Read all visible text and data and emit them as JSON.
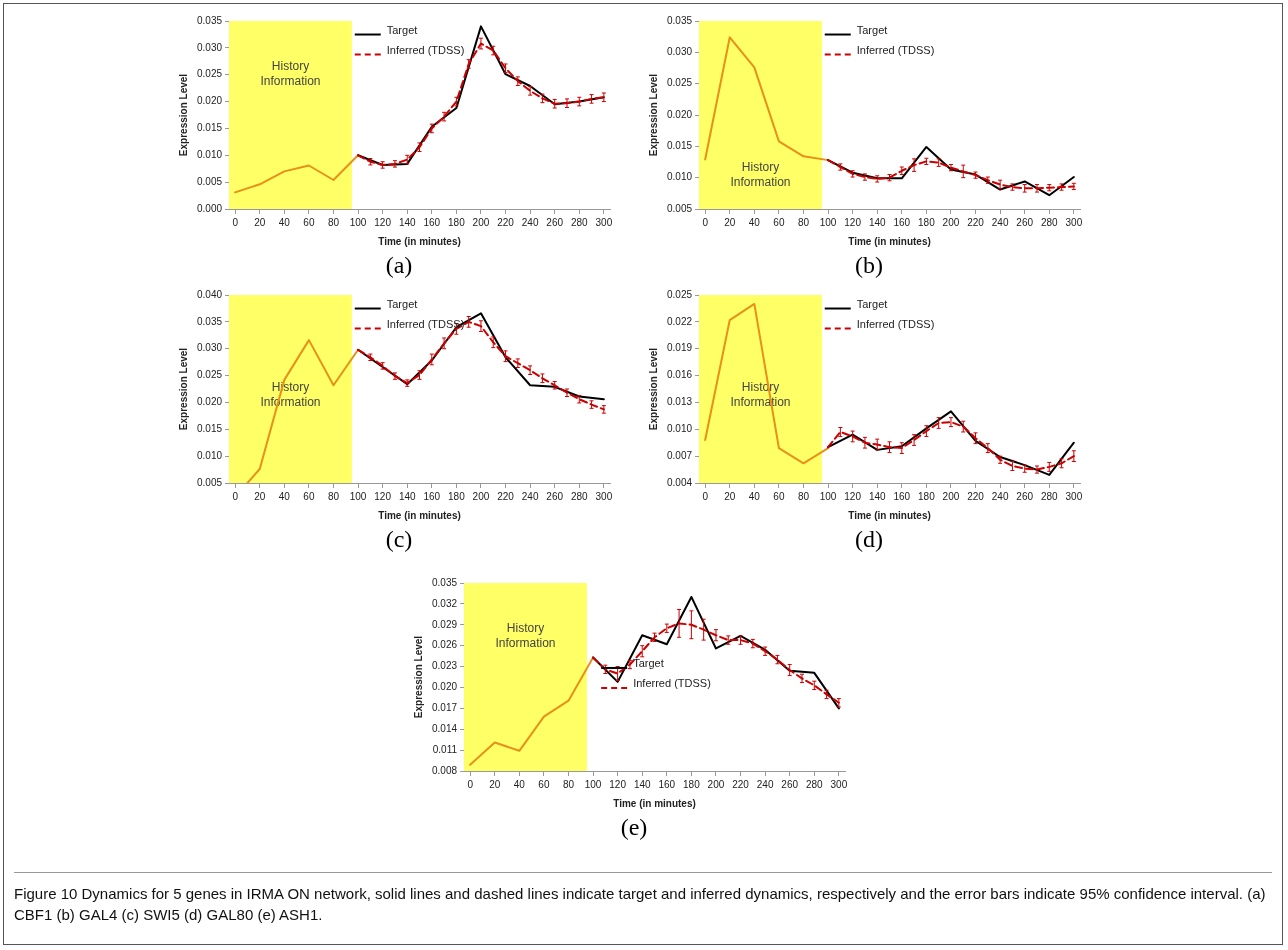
{
  "chart_data": [
    {
      "type": "line",
      "xlabel": "Time (in minutes)",
      "ylabel": "Expression Level",
      "annotations": [
        "(a)"
      ],
      "legend": "top",
      "grid": false,
      "xlim": [
        -5,
        305
      ],
      "xticks": [
        0,
        20,
        40,
        60,
        80,
        100,
        120,
        140,
        160,
        180,
        200,
        220,
        240,
        260,
        280,
        300
      ],
      "ylim": [
        0,
        0.035
      ],
      "yticks": [
        {
          "value": 0,
          "label": "0.000"
        },
        0.005,
        {
          "value": 0.01,
          "label": "0.010"
        },
        0.015,
        {
          "value": 0.02,
          "label": "0.020"
        },
        0.025,
        {
          "value": 0.03,
          "label": "0.030"
        },
        0.035
      ],
      "bands": [
        {
          "axis": "x",
          "from": -5,
          "to": 95,
          "label": "History Information",
          "color": "#ffff66"
        }
      ],
      "series": [
        {
          "color": "#e8901a",
          "x": [
            0,
            20,
            40,
            60,
            80,
            100
          ],
          "values": [
            0.0031,
            0.0046,
            0.007,
            0.0081,
            0.0054,
            0.01
          ]
        },
        {
          "name": "Target",
          "color": "#000000",
          "x": [
            100,
            120,
            140,
            160,
            180,
            200,
            220,
            240,
            260,
            280,
            300
          ],
          "values": [
            0.01,
            0.0082,
            0.0084,
            0.0153,
            0.0188,
            0.034,
            0.0251,
            0.0229,
            0.0195,
            0.02,
            0.0208
          ]
        },
        {
          "name": "Inferred (TDSS)",
          "color": "#cc0000",
          "line_style": "dashed",
          "x": [
            100,
            110,
            120,
            130,
            140,
            150,
            160,
            170,
            180,
            190,
            200,
            210,
            220,
            230,
            240,
            250,
            260,
            270,
            280,
            290,
            300
          ],
          "values": [
            0.01,
            0.0088,
            0.0082,
            0.0084,
            0.0092,
            0.0115,
            0.015,
            0.0172,
            0.02,
            0.027,
            0.0308,
            0.0295,
            0.0262,
            0.0238,
            0.022,
            0.0206,
            0.0196,
            0.0197,
            0.02,
            0.0205,
            0.0208
          ],
          "errors": [
            null,
            0.0006,
            0.0006,
            0.0006,
            0.0008,
            0.0008,
            0.0008,
            0.0008,
            0.0008,
            0.0008,
            0.001,
            0.0008,
            0.0008,
            0.0008,
            0.0008,
            0.0008,
            0.0008,
            0.0008,
            0.0008,
            0.0008,
            0.0008
          ]
        }
      ]
    },
    {
      "type": "line",
      "xlabel": "Time (in minutes)",
      "ylabel": "Expression Level",
      "annotations": [
        "(b)"
      ],
      "legend": "top",
      "grid": false,
      "xlim": [
        -5,
        305
      ],
      "xticks": [
        0,
        20,
        40,
        60,
        80,
        100,
        120,
        140,
        160,
        180,
        200,
        220,
        240,
        260,
        280,
        300
      ],
      "ylim": [
        0.005,
        0.035
      ],
      "yticks": [
        0.005,
        {
          "value": 0.01,
          "label": "0.010"
        },
        0.015,
        {
          "value": 0.02,
          "label": "0.020"
        },
        0.025,
        {
          "value": 0.03,
          "label": "0.030"
        },
        0.035
      ],
      "bands": [
        {
          "axis": "x",
          "from": -5,
          "to": 95,
          "label": "History Information",
          "color": "#ffff66"
        }
      ],
      "series": [
        {
          "color": "#e8901a",
          "x": [
            0,
            20,
            40,
            60,
            80,
            100
          ],
          "values": [
            0.0129,
            0.0324,
            0.0276,
            0.0158,
            0.0134,
            0.0128
          ]
        },
        {
          "name": "Target",
          "color": "#000000",
          "x": [
            100,
            120,
            140,
            160,
            180,
            200,
            220,
            240,
            260,
            280,
            300
          ],
          "values": [
            0.0128,
            0.0108,
            0.0099,
            0.0099,
            0.0149,
            0.0113,
            0.0105,
            0.0081,
            0.0094,
            0.0072,
            0.0101
          ]
        },
        {
          "name": "Inferred (TDSS)",
          "color": "#cc0000",
          "line_style": "dashed",
          "x": [
            100,
            110,
            120,
            130,
            140,
            150,
            160,
            170,
            180,
            190,
            200,
            210,
            220,
            230,
            240,
            250,
            260,
            270,
            280,
            290,
            300
          ],
          "values": [
            0.0128,
            0.0117,
            0.0106,
            0.0101,
            0.0098,
            0.01,
            0.0111,
            0.012,
            0.0126,
            0.0124,
            0.0116,
            0.011,
            0.0104,
            0.0096,
            0.0089,
            0.0085,
            0.0083,
            0.0083,
            0.0084,
            0.0085,
            0.0086
          ],
          "errors": [
            null,
            0.0005,
            0.0005,
            0.0005,
            0.0005,
            0.0005,
            0.0006,
            0.001,
            0.0005,
            0.0006,
            0.0005,
            0.001,
            0.0005,
            0.0005,
            0.0007,
            0.0005,
            0.0006,
            0.0006,
            0.0005,
            0.0005,
            0.0005
          ]
        }
      ]
    },
    {
      "type": "line",
      "xlabel": "Time (in minutes)",
      "ylabel": "Expression Level",
      "annotations": [
        "(c)"
      ],
      "legend": "top",
      "grid": false,
      "xlim": [
        -5,
        305
      ],
      "xticks": [
        0,
        20,
        40,
        60,
        80,
        100,
        120,
        140,
        160,
        180,
        200,
        220,
        240,
        260,
        280,
        300
      ],
      "ylim": [
        0.005,
        0.04
      ],
      "yticks": [
        0.005,
        {
          "value": 0.01,
          "label": "0.010"
        },
        0.015,
        {
          "value": 0.02,
          "label": "0.020"
        },
        0.025,
        {
          "value": 0.03,
          "label": "0.030"
        },
        0.035,
        {
          "value": 0.04,
          "label": "0.040"
        }
      ],
      "bands": [
        {
          "axis": "x",
          "from": -5,
          "to": 95,
          "label": "History Information",
          "color": "#ffff66"
        }
      ],
      "series": [
        {
          "color": "#e8901a",
          "x": [
            10,
            20,
            40,
            60,
            80,
            100
          ],
          "values": [
            0.005,
            0.0076,
            0.0242,
            0.0316,
            0.0232,
            0.0298
          ]
        },
        {
          "name": "Target",
          "color": "#000000",
          "x": [
            100,
            120,
            140,
            160,
            180,
            200,
            220,
            240,
            260,
            280,
            300
          ],
          "values": [
            0.0298,
            0.0266,
            0.0234,
            0.0278,
            0.034,
            0.0366,
            0.0284,
            0.0232,
            0.0229,
            0.0211,
            0.0206
          ]
        },
        {
          "name": "Inferred (TDSS)",
          "color": "#cc0000",
          "line_style": "dashed",
          "x": [
            100,
            110,
            120,
            130,
            140,
            150,
            160,
            170,
            180,
            190,
            200,
            210,
            220,
            230,
            240,
            250,
            260,
            270,
            280,
            290,
            300
          ],
          "values": [
            0.0298,
            0.0284,
            0.0268,
            0.0249,
            0.0236,
            0.0251,
            0.028,
            0.031,
            0.0337,
            0.035,
            0.0342,
            0.0312,
            0.0286,
            0.0273,
            0.026,
            0.0245,
            0.0232,
            0.0218,
            0.0206,
            0.0196,
            0.0187
          ],
          "errors": [
            null,
            0.0006,
            0.0006,
            0.0006,
            0.0006,
            0.0008,
            0.001,
            0.001,
            0.001,
            0.001,
            0.001,
            0.001,
            0.001,
            0.0008,
            0.0008,
            0.0008,
            0.0007,
            0.0007,
            0.0007,
            0.0007,
            0.0007
          ]
        }
      ]
    },
    {
      "type": "line",
      "xlabel": "Time (in minutes)",
      "ylabel": "Expression Level",
      "annotations": [
        "(d)"
      ],
      "legend": "top",
      "grid": false,
      "xlim": [
        -5,
        305
      ],
      "xticks": [
        0,
        20,
        40,
        60,
        80,
        100,
        120,
        140,
        160,
        180,
        200,
        220,
        240,
        260,
        280,
        300
      ],
      "ylim": [
        0.004,
        0.025
      ],
      "yticks": [
        0.004,
        0.007,
        {
          "value": 0.01,
          "label": "0.010"
        },
        0.013,
        0.016,
        0.019,
        0.022,
        0.025
      ],
      "bands": [
        {
          "axis": "x",
          "from": -5,
          "to": 95,
          "label": "History Information",
          "color": "#ffff66"
        }
      ],
      "series": [
        {
          "color": "#e8901a",
          "x": [
            0,
            20,
            40,
            60,
            80,
            100
          ],
          "values": [
            0.0088,
            0.0222,
            0.024,
            0.0079,
            0.0062,
            0.0079
          ]
        },
        {
          "name": "Target",
          "color": "#000000",
          "x": [
            100,
            120,
            140,
            160,
            180,
            200,
            220,
            240,
            260,
            280,
            300
          ],
          "values": [
            0.008,
            0.0094,
            0.0077,
            0.0081,
            0.0101,
            0.012,
            0.0087,
            0.0069,
            0.006,
            0.0049,
            0.0085
          ]
        },
        {
          "name": "Inferred (TDSS)",
          "color": "#cc0000",
          "line_style": "dashed",
          "x": [
            100,
            110,
            120,
            130,
            140,
            150,
            160,
            170,
            180,
            190,
            200,
            210,
            220,
            230,
            240,
            250,
            260,
            270,
            280,
            290,
            300
          ],
          "values": [
            0.008,
            0.0097,
            0.0092,
            0.0085,
            0.0083,
            0.008,
            0.0079,
            0.0088,
            0.0098,
            0.0107,
            0.0108,
            0.0103,
            0.009,
            0.0079,
            0.0066,
            0.0059,
            0.0056,
            0.0055,
            0.0058,
            0.0062,
            0.007
          ],
          "errors": [
            null,
            0.0005,
            0.0006,
            0.0006,
            0.0006,
            0.0006,
            0.0006,
            0.0006,
            0.0006,
            0.0006,
            0.0005,
            0.0006,
            0.0006,
            0.0005,
            0.0004,
            0.0005,
            0.0004,
            0.0004,
            0.0005,
            0.0005,
            0.0006
          ]
        }
      ]
    },
    {
      "type": "line",
      "xlabel": "Time (in minutes)",
      "ylabel": "Expression Level",
      "annotations": [
        "(e)",
        "Figure 10 Dynamics for 5 genes in IRMA ON network, solid lines and dashed lines indicate target and inferred dynamics, respectively and the error bars indicate 95% confidence interval. (a) CBF1 (b) GAL4 (c) SWI5 (d) GAL80 (e) ASH1."
      ],
      "legend": "center",
      "grid": false,
      "xlim": [
        -5,
        305
      ],
      "xticks": [
        0,
        20,
        40,
        60,
        80,
        100,
        120,
        140,
        160,
        180,
        200,
        220,
        240,
        260,
        280,
        300
      ],
      "ylim": [
        0.008,
        0.035
      ],
      "yticks": [
        0.008,
        0.011,
        0.014,
        0.017,
        {
          "value": 0.02,
          "label": "0.020"
        },
        0.023,
        0.026,
        0.029,
        0.032,
        0.035
      ],
      "bands": [
        {
          "axis": "x",
          "from": -5,
          "to": 95,
          "label": "History Information",
          "color": "#ffff66"
        }
      ],
      "series": [
        {
          "color": "#e8901a",
          "x": [
            0,
            20,
            40,
            60,
            80,
            100
          ],
          "values": [
            0.0089,
            0.0121,
            0.0109,
            0.0158,
            0.0181,
            0.0243
          ]
        },
        {
          "name": "Target",
          "color": "#000000",
          "x": [
            100,
            120,
            140,
            160,
            180,
            200,
            220,
            240,
            260,
            280,
            300
          ],
          "values": [
            0.0243,
            0.0208,
            0.0275,
            0.0262,
            0.033,
            0.0256,
            0.0274,
            0.0254,
            0.0224,
            0.0221,
            0.017
          ]
        },
        {
          "name": "Inferred (TDSS)",
          "color": "#cc0000",
          "line_style": "dashed",
          "x": [
            100,
            110,
            120,
            130,
            140,
            150,
            160,
            170,
            180,
            190,
            200,
            210,
            220,
            230,
            240,
            250,
            260,
            270,
            280,
            290,
            300
          ],
          "values": [
            0.0243,
            0.0226,
            0.022,
            0.0233,
            0.0252,
            0.0272,
            0.0285,
            0.0292,
            0.029,
            0.0283,
            0.0275,
            0.0268,
            0.0268,
            0.0263,
            0.0252,
            0.024,
            0.0225,
            0.0213,
            0.0203,
            0.019,
            0.0178
          ],
          "errors": [
            null,
            0.0006,
            0.001,
            0.0006,
            0.0008,
            0.0006,
            0.0006,
            0.002,
            0.002,
            0.0015,
            0.0008,
            0.0006,
            0.0006,
            0.0006,
            0.0006,
            0.0006,
            0.0008,
            0.0006,
            0.0006,
            0.0006,
            0.0006
          ]
        }
      ]
    }
  ]
}
